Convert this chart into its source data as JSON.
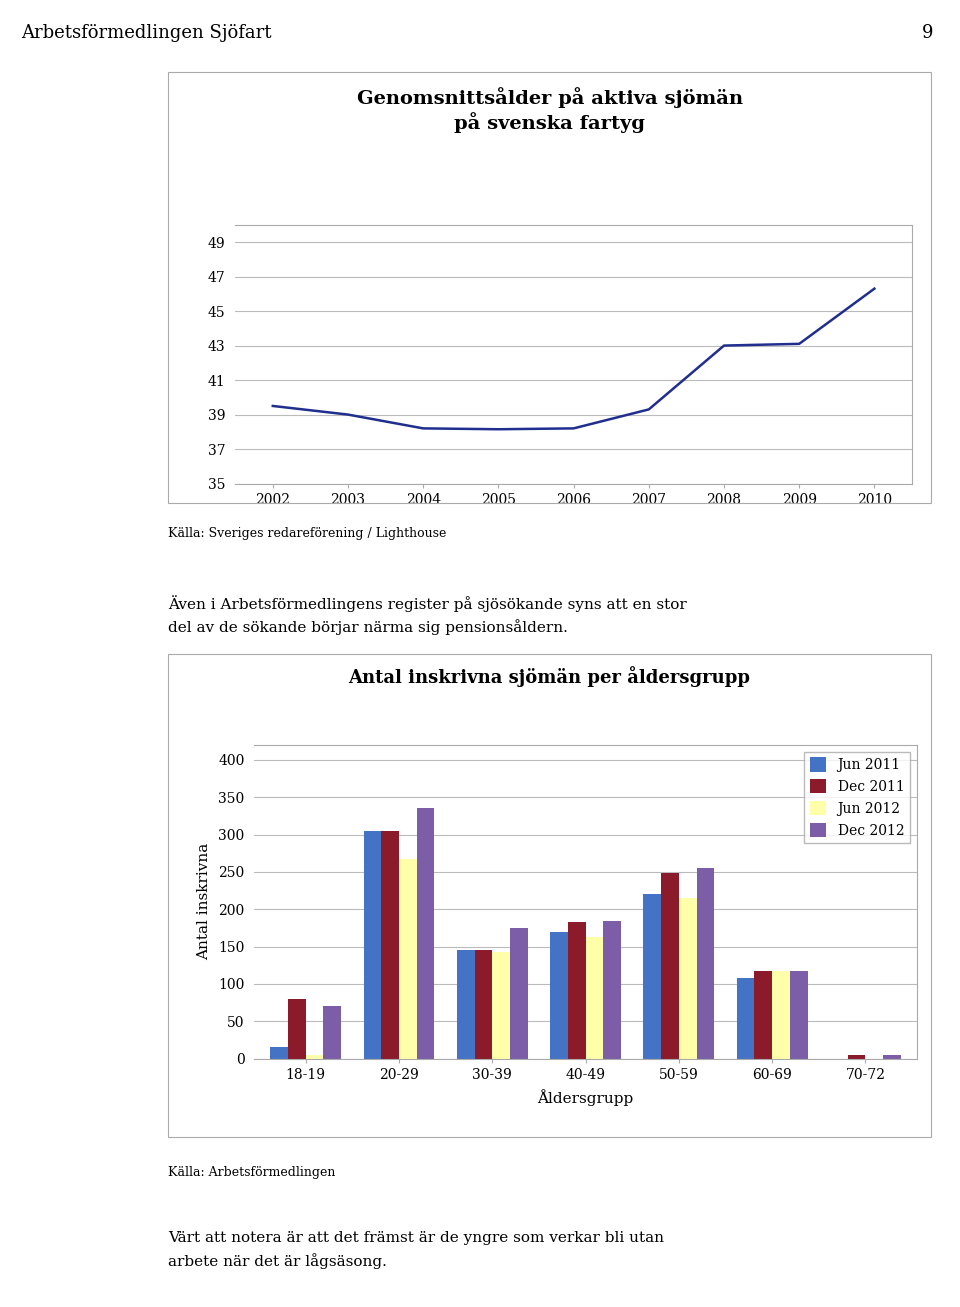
{
  "page_title": "Arbetsförmedlingen Sjöfart",
  "page_number": "9",
  "line_chart": {
    "title": "Genomsnittsålder på aktiva sjömän\npå svenska fartyg",
    "years": [
      2002,
      2003,
      2004,
      2005,
      2006,
      2007,
      2008,
      2009,
      2010
    ],
    "values": [
      39.5,
      39.0,
      38.2,
      38.15,
      38.2,
      39.3,
      43.0,
      43.1,
      46.3
    ],
    "ylim": [
      35,
      50
    ],
    "yticks": [
      35,
      37,
      39,
      41,
      43,
      45,
      47,
      49
    ],
    "line_color": "#1F2E8F",
    "source": "Källa: Sveriges redareförening / Lighthouse"
  },
  "bar_chart": {
    "title": "Antal inskrivna sjömän per åldersgrupp",
    "categories": [
      "18-19",
      "20-29",
      "30-39",
      "40-49",
      "50-59",
      "60-69",
      "70-72"
    ],
    "series_names": [
      "Jun 2011",
      "Dec 2011",
      "Jun 2012",
      "Dec 2012"
    ],
    "series_data": [
      [
        15,
        305,
        145,
        170,
        220,
        108,
        0
      ],
      [
        80,
        305,
        145,
        183,
        248,
        117,
        5
      ],
      [
        5,
        268,
        143,
        163,
        215,
        117,
        0
      ],
      [
        70,
        335,
        175,
        185,
        255,
        118,
        5
      ]
    ],
    "colors": [
      "#4472C4",
      "#8B1A2B",
      "#FFFFAA",
      "#7B5EA7"
    ],
    "ylabel": "Antal inskrivna",
    "xlabel": "Åldersgrupp",
    "ylim": [
      0,
      420
    ],
    "yticks": [
      0,
      50,
      100,
      150,
      200,
      250,
      300,
      350,
      400
    ],
    "source": "Källa: Arbetsförmedlingen"
  },
  "text_block1": "Även i Arbetsförmedlingens register på sjösökande syns att en stor\ndel av de sökande börjar närma sig pensionsåldern.",
  "text_block2": "Värt att notera är att det främst är de yngre som verkar bli utan\narbete när det är lågsäsong.",
  "background_color": "#ffffff"
}
